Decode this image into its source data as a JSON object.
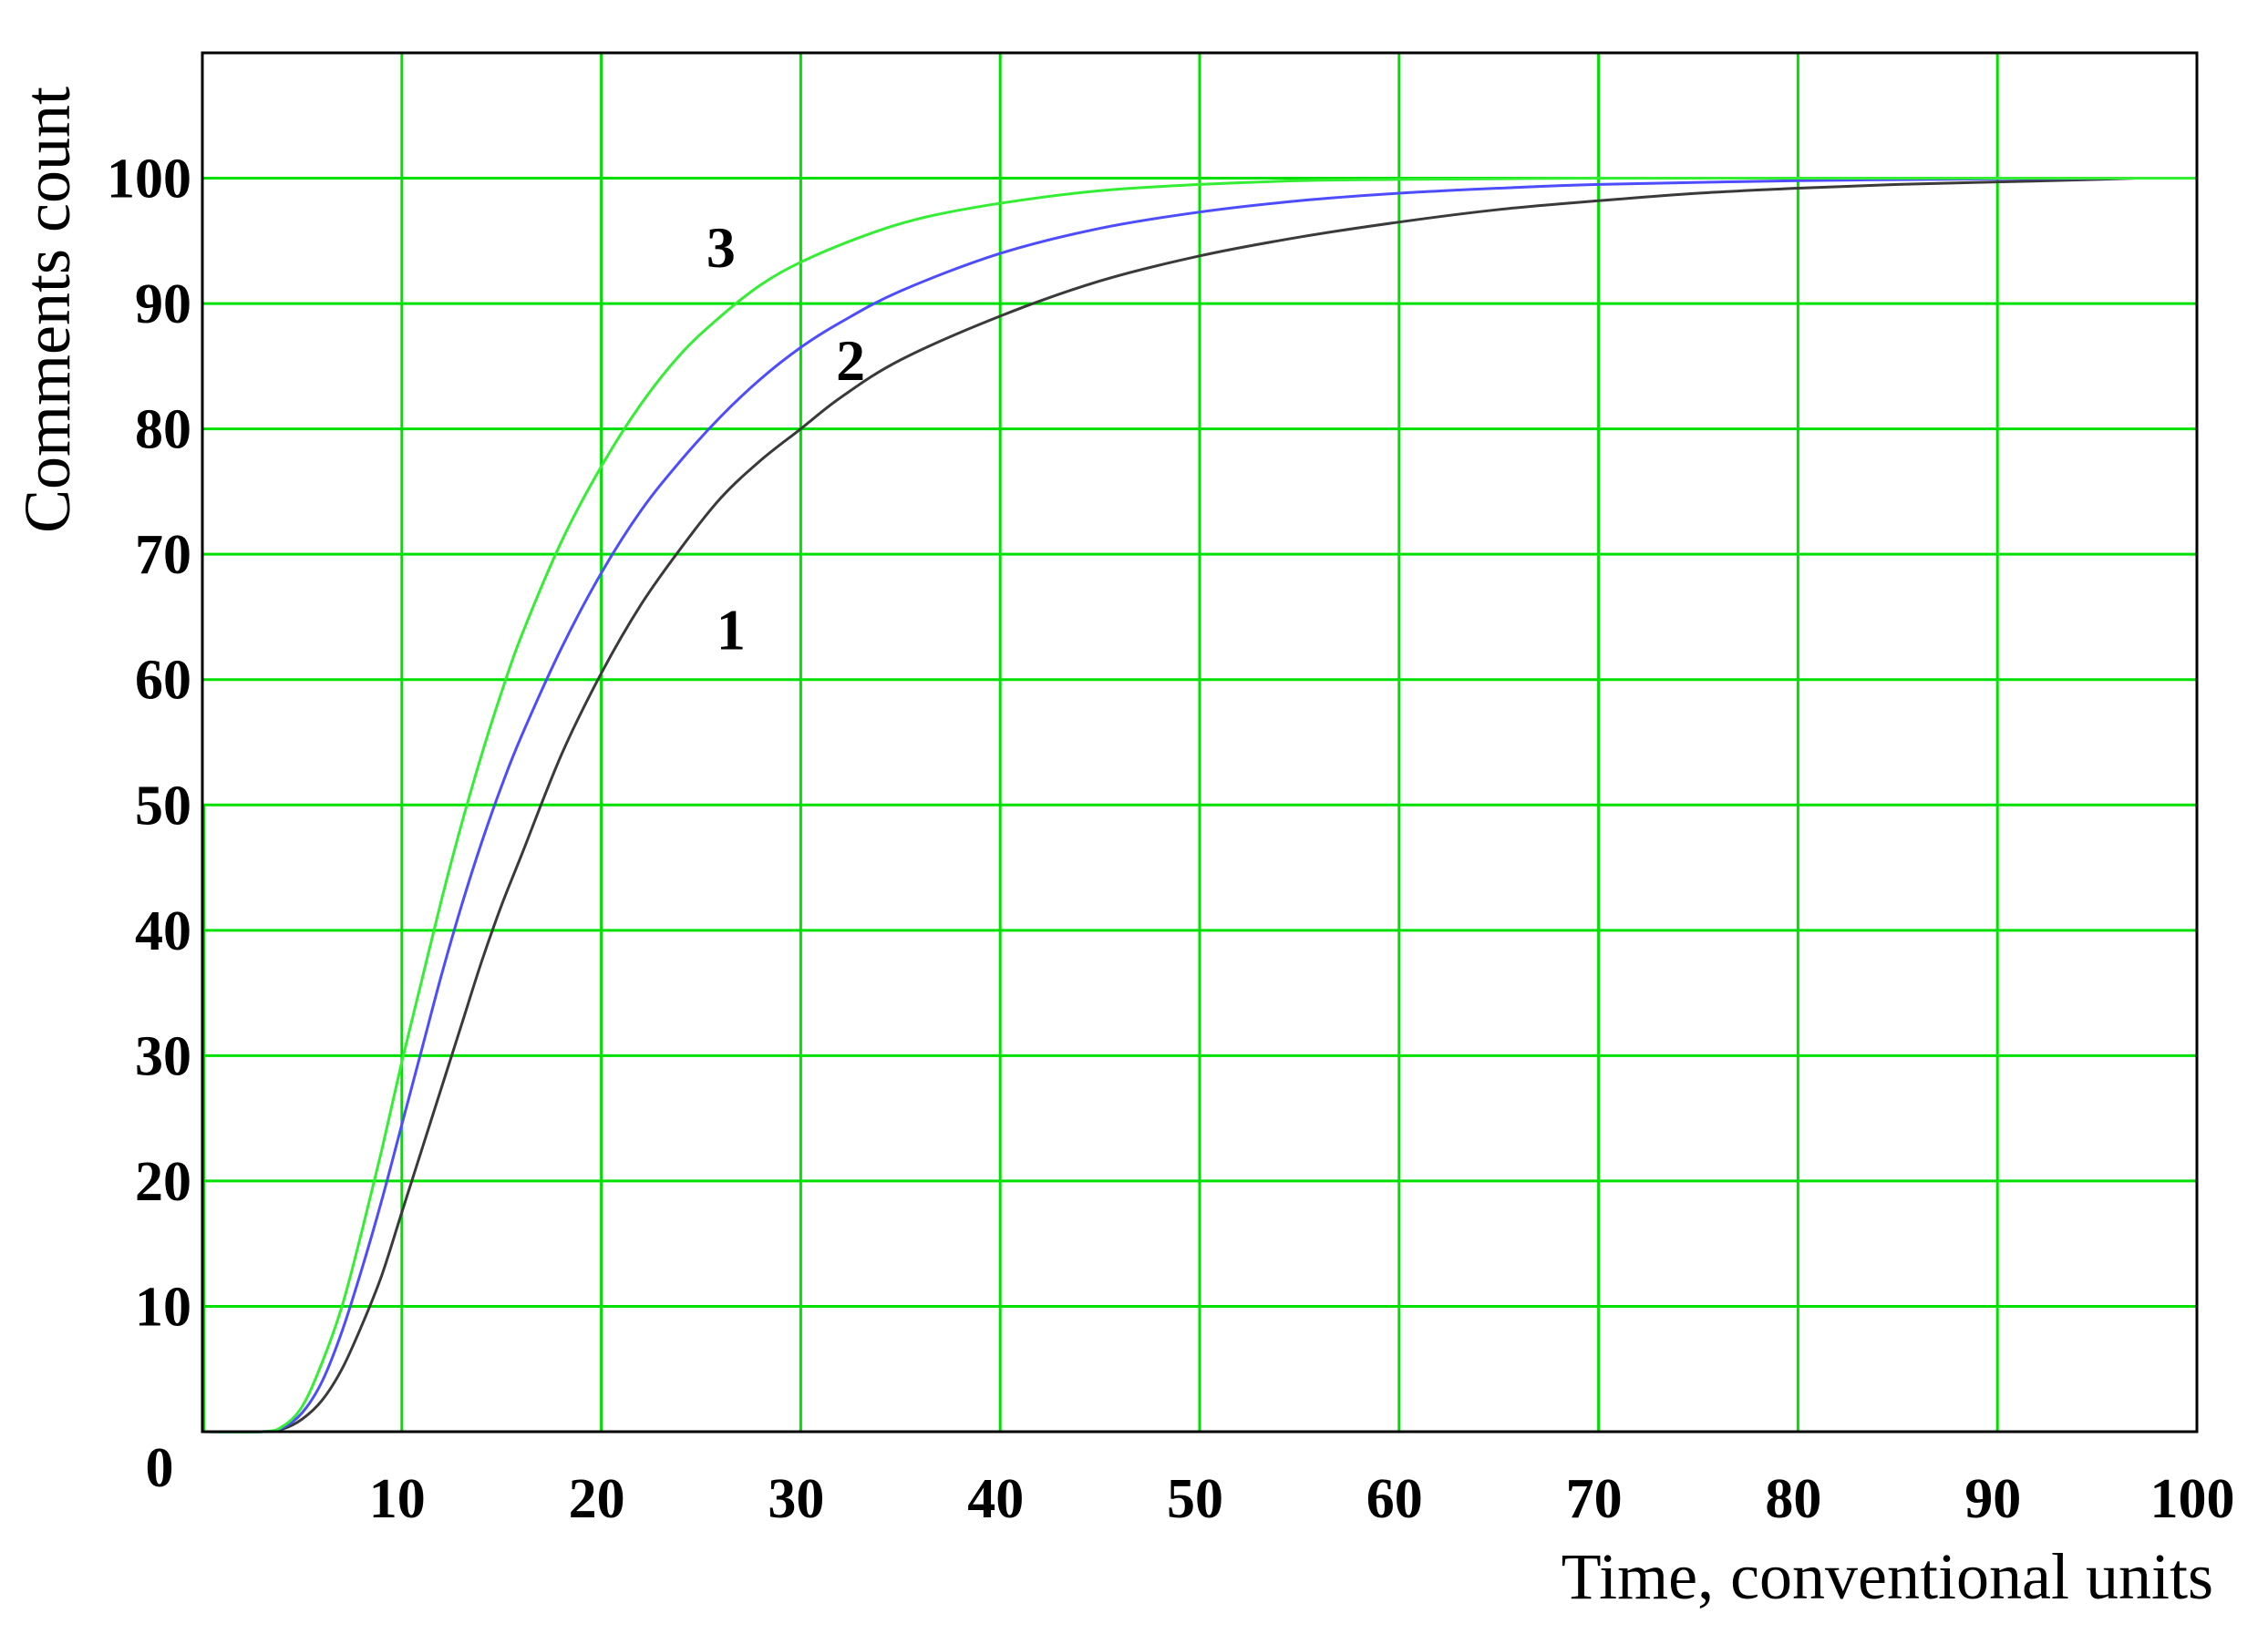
{
  "chart_data": {
    "type": "line",
    "xlabel": "Time, conventional units",
    "ylabel": "Comments count",
    "xlim": [
      0,
      100
    ],
    "ylim": [
      0,
      110
    ],
    "x_ticks": [
      "0",
      "10",
      "20",
      "30",
      "40",
      "50",
      "60",
      "70",
      "80",
      "90",
      "100"
    ],
    "y_ticks": [
      "10",
      "20",
      "30",
      "40",
      "50",
      "60",
      "70",
      "80",
      "90",
      "100"
    ],
    "grid": true,
    "grid_color": "#00e000",
    "series": [
      {
        "name": "1",
        "color": "#3a3a3a",
        "x": [
          0,
          3,
          4,
          5,
          6,
          7,
          8,
          9,
          10,
          11,
          12,
          13,
          14,
          15,
          16,
          18,
          20,
          22,
          24,
          26,
          28,
          30,
          32,
          35,
          40,
          45,
          50,
          55,
          60,
          65,
          70,
          75,
          80,
          85,
          90,
          95,
          97
        ],
        "y": [
          0,
          0,
          0.2,
          1.0,
          2.5,
          5.0,
          8.5,
          12.5,
          17.5,
          22.5,
          27.5,
          32.5,
          37.5,
          42.0,
          46.0,
          54.0,
          60.5,
          66.0,
          70.5,
          74.5,
          77.5,
          80.0,
          82.5,
          85.5,
          89.0,
          91.8,
          93.8,
          95.3,
          96.5,
          97.5,
          98.2,
          98.8,
          99.2,
          99.5,
          99.7,
          99.9,
          100
        ]
      },
      {
        "name": "2",
        "color": "#4d4dff",
        "x": [
          0,
          3,
          4,
          5,
          6,
          7,
          8,
          9,
          10,
          11,
          12,
          13,
          14,
          15,
          16,
          18,
          20,
          22,
          24,
          26,
          28,
          30,
          32,
          35,
          40,
          45,
          50,
          55,
          60,
          65,
          70,
          80,
          90,
          97
        ],
        "y": [
          0,
          0,
          0.3,
          1.5,
          4.0,
          8.0,
          13.0,
          18.5,
          24.5,
          30.5,
          36.5,
          42.0,
          47.0,
          51.5,
          55.5,
          62.5,
          68.5,
          73.5,
          77.5,
          81.0,
          84.0,
          86.5,
          88.5,
          91.0,
          94.0,
          96.0,
          97.3,
          98.2,
          98.8,
          99.2,
          99.5,
          99.8,
          99.95,
          100
        ]
      },
      {
        "name": "3",
        "color": "#33ee33",
        "x": [
          0,
          3,
          4,
          5,
          6,
          7,
          8,
          9,
          10,
          11,
          12,
          13,
          14,
          15,
          16,
          18,
          20,
          22,
          24,
          26,
          28,
          30,
          33,
          36,
          40,
          45,
          50,
          55,
          60,
          70,
          80,
          90,
          100
        ],
        "y": [
          0,
          0,
          0.4,
          2.0,
          5.5,
          10.0,
          16.0,
          22.5,
          29.5,
          36.0,
          42.5,
          48.5,
          54.0,
          59.0,
          63.5,
          71.0,
          77.0,
          82.0,
          86.0,
          89.0,
          91.5,
          93.3,
          95.3,
          96.8,
          98.0,
          99.0,
          99.5,
          99.8,
          99.9,
          100,
          100,
          100,
          100
        ]
      }
    ],
    "annotations": [
      {
        "text": "1",
        "x": 26.5,
        "y": 64
      },
      {
        "text": "2",
        "x": 32.5,
        "y": 85.5
      },
      {
        "text": "3",
        "x": 26,
        "y": 94.5
      }
    ]
  }
}
